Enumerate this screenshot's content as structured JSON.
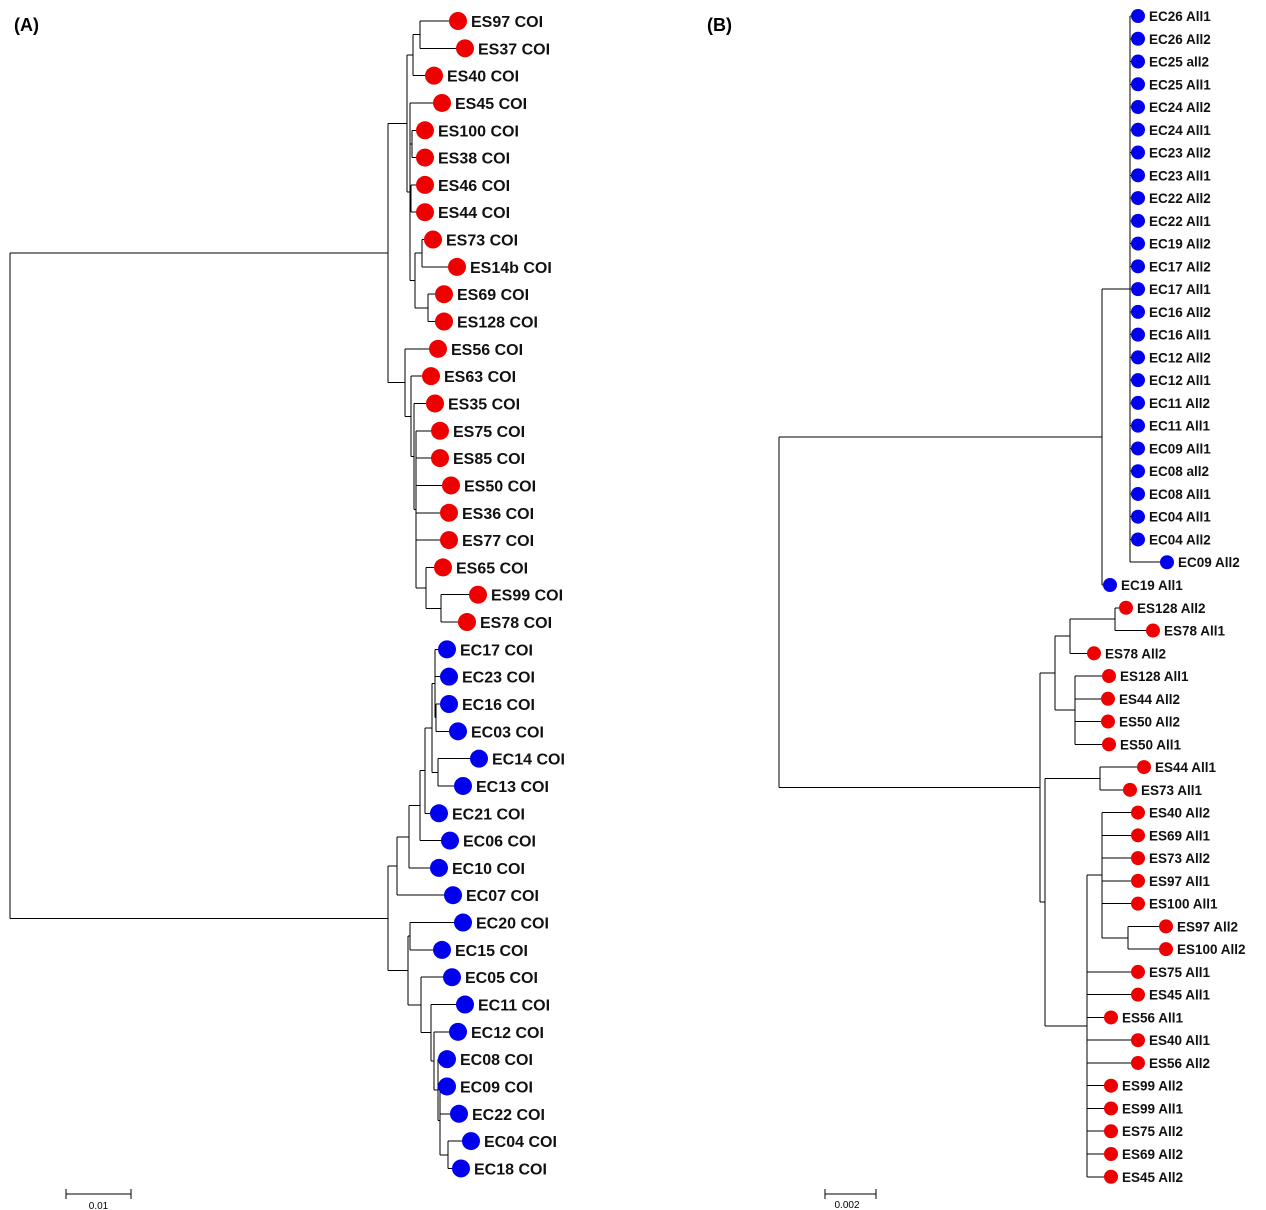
{
  "colors": {
    "ES": "#ee0000",
    "EC": "#0000ee",
    "line": "#000000"
  },
  "panels": [
    {
      "id": "A",
      "label": "(A)",
      "scale_label": "0.01",
      "leaves": [
        {
          "label": "ES97 COI",
          "group": "ES"
        },
        {
          "label": "ES37 COI",
          "group": "ES"
        },
        {
          "label": "ES40 COI",
          "group": "ES"
        },
        {
          "label": "ES45 COI",
          "group": "ES"
        },
        {
          "label": "ES100 COI",
          "group": "ES"
        },
        {
          "label": "ES38 COI",
          "group": "ES"
        },
        {
          "label": "ES46 COI",
          "group": "ES"
        },
        {
          "label": "ES44 COI",
          "group": "ES"
        },
        {
          "label": "ES73 COI",
          "group": "ES"
        },
        {
          "label": "ES14b COI",
          "group": "ES"
        },
        {
          "label": "ES69 COI",
          "group": "ES"
        },
        {
          "label": "ES128 COI",
          "group": "ES"
        },
        {
          "label": "ES56 COI",
          "group": "ES"
        },
        {
          "label": "ES63 COI",
          "group": "ES"
        },
        {
          "label": "ES35 COI",
          "group": "ES"
        },
        {
          "label": "ES75 COI",
          "group": "ES"
        },
        {
          "label": "ES85 COI",
          "group": "ES"
        },
        {
          "label": "ES50 COI",
          "group": "ES"
        },
        {
          "label": "ES36 COI",
          "group": "ES"
        },
        {
          "label": "ES77 COI",
          "group": "ES"
        },
        {
          "label": "ES65 COI",
          "group": "ES"
        },
        {
          "label": "ES99 COI",
          "group": "ES"
        },
        {
          "label": "ES78 COI",
          "group": "ES"
        },
        {
          "label": "EC17 COI",
          "group": "EC"
        },
        {
          "label": "EC23 COI",
          "group": "EC"
        },
        {
          "label": "EC16 COI",
          "group": "EC"
        },
        {
          "label": "EC03 COI",
          "group": "EC"
        },
        {
          "label": "EC14 COI",
          "group": "EC"
        },
        {
          "label": "EC13 COI",
          "group": "EC"
        },
        {
          "label": "EC21 COI",
          "group": "EC"
        },
        {
          "label": "EC06 COI",
          "group": "EC"
        },
        {
          "label": "EC10 COI",
          "group": "EC"
        },
        {
          "label": "EC07 COI",
          "group": "EC"
        },
        {
          "label": "EC20 COI",
          "group": "EC"
        },
        {
          "label": "EC15 COI",
          "group": "EC"
        },
        {
          "label": "EC05 COI",
          "group": "EC"
        },
        {
          "label": "EC11 COI",
          "group": "EC"
        },
        {
          "label": "EC12 COI",
          "group": "EC"
        },
        {
          "label": "EC08 COI",
          "group": "EC"
        },
        {
          "label": "EC09 COI",
          "group": "EC"
        },
        {
          "label": "EC22 COI",
          "group": "EC"
        },
        {
          "label": "EC04 COI",
          "group": "EC"
        },
        {
          "label": "EC18 COI",
          "group": "EC"
        }
      ]
    },
    {
      "id": "B",
      "label": "(B)",
      "scale_label": "0.002",
      "leaves": [
        {
          "label": "EC26 All1",
          "group": "EC"
        },
        {
          "label": "EC26 All2",
          "group": "EC"
        },
        {
          "label": "EC25 all2",
          "group": "EC"
        },
        {
          "label": "EC25 All1",
          "group": "EC"
        },
        {
          "label": "EC24 All2",
          "group": "EC"
        },
        {
          "label": "EC24 All1",
          "group": "EC"
        },
        {
          "label": "EC23 All2",
          "group": "EC"
        },
        {
          "label": "EC23 All1",
          "group": "EC"
        },
        {
          "label": "EC22 All2",
          "group": "EC"
        },
        {
          "label": "EC22 All1",
          "group": "EC"
        },
        {
          "label": "EC19 All2",
          "group": "EC"
        },
        {
          "label": "EC17 All2",
          "group": "EC"
        },
        {
          "label": "EC17 All1",
          "group": "EC"
        },
        {
          "label": "EC16 All2",
          "group": "EC"
        },
        {
          "label": "EC16 All1",
          "group": "EC"
        },
        {
          "label": "EC12 All2",
          "group": "EC"
        },
        {
          "label": "EC12 All1",
          "group": "EC"
        },
        {
          "label": "EC11 All2",
          "group": "EC"
        },
        {
          "label": "EC11 All1",
          "group": "EC"
        },
        {
          "label": "EC09 All1",
          "group": "EC"
        },
        {
          "label": "EC08 all2",
          "group": "EC"
        },
        {
          "label": "EC08 All1",
          "group": "EC"
        },
        {
          "label": "EC04 All1",
          "group": "EC"
        },
        {
          "label": "EC04 All2",
          "group": "EC"
        },
        {
          "label": "EC09 All2",
          "group": "EC"
        },
        {
          "label": "EC19 All1",
          "group": "EC"
        },
        {
          "label": "ES128 All2",
          "group": "ES"
        },
        {
          "label": "ES78 All1",
          "group": "ES"
        },
        {
          "label": "ES78 All2",
          "group": "ES"
        },
        {
          "label": "ES128 All1",
          "group": "ES"
        },
        {
          "label": "ES44 All2",
          "group": "ES"
        },
        {
          "label": "ES50 All2",
          "group": "ES"
        },
        {
          "label": "ES50 All1",
          "group": "ES"
        },
        {
          "label": "ES44 All1",
          "group": "ES"
        },
        {
          "label": "ES73 All1",
          "group": "ES"
        },
        {
          "label": "ES40 All2",
          "group": "ES"
        },
        {
          "label": "ES69 All1",
          "group": "ES"
        },
        {
          "label": "ES73 All2",
          "group": "ES"
        },
        {
          "label": "ES97 All1",
          "group": "ES"
        },
        {
          "label": "ES100 All1",
          "group": "ES"
        },
        {
          "label": "ES97 All2",
          "group": "ES"
        },
        {
          "label": "ES100 All2",
          "group": "ES"
        },
        {
          "label": "ES75 All1",
          "group": "ES"
        },
        {
          "label": "ES45 All1",
          "group": "ES"
        },
        {
          "label": "ES56 All1",
          "group": "ES"
        },
        {
          "label": "ES40 All1",
          "group": "ES"
        },
        {
          "label": "ES56 All2",
          "group": "ES"
        },
        {
          "label": "ES99 All2",
          "group": "ES"
        },
        {
          "label": "ES99 All1",
          "group": "ES"
        },
        {
          "label": "ES75 All2",
          "group": "ES"
        },
        {
          "label": "ES69 All2",
          "group": "ES"
        },
        {
          "label": "ES45 All2",
          "group": "ES"
        }
      ]
    }
  ]
}
